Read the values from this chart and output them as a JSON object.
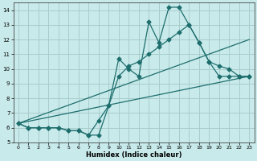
{
  "xlabel": "Humidex (Indice chaleur)",
  "xlim": [
    -0.5,
    23.5
  ],
  "ylim": [
    5,
    14.5
  ],
  "xticks": [
    0,
    1,
    2,
    3,
    4,
    5,
    6,
    7,
    8,
    9,
    10,
    11,
    12,
    13,
    14,
    15,
    16,
    17,
    18,
    19,
    20,
    21,
    22,
    23
  ],
  "yticks": [
    5,
    6,
    7,
    8,
    9,
    10,
    11,
    12,
    13,
    14
  ],
  "bg_color": "#c9eaea",
  "grid_color": "#a8cccc",
  "line_color": "#1e6e6e",
  "line1_x": [
    0,
    1,
    2,
    3,
    4,
    5,
    6,
    7,
    8,
    9,
    10,
    11,
    12,
    13,
    14,
    15,
    16,
    17,
    18,
    19,
    20,
    21,
    22,
    23
  ],
  "line1_y": [
    6.3,
    6.0,
    6.0,
    6.0,
    6.0,
    5.8,
    5.8,
    5.5,
    5.5,
    7.5,
    10.7,
    10.0,
    9.5,
    13.2,
    11.8,
    14.2,
    14.2,
    13.0,
    11.8,
    10.5,
    9.5,
    9.5,
    9.5,
    9.5
  ],
  "line2_x": [
    0,
    1,
    2,
    3,
    4,
    5,
    6,
    7,
    8,
    9,
    10,
    11,
    12,
    13,
    14,
    15,
    16,
    17,
    18,
    19,
    20,
    21,
    22,
    23
  ],
  "line2_y": [
    6.3,
    6.0,
    6.0,
    6.0,
    6.0,
    5.8,
    5.8,
    5.5,
    6.5,
    7.5,
    9.5,
    10.2,
    10.5,
    11.0,
    11.5,
    12.0,
    12.5,
    13.0,
    11.8,
    10.5,
    10.2,
    10.0,
    9.5,
    9.5
  ],
  "ref_line1_x": [
    0,
    23
  ],
  "ref_line1_y": [
    6.3,
    9.5
  ],
  "ref_line2_x": [
    0,
    23
  ],
  "ref_line2_y": [
    6.3,
    12.0
  ],
  "marker_size": 2.5,
  "linewidth": 0.9
}
